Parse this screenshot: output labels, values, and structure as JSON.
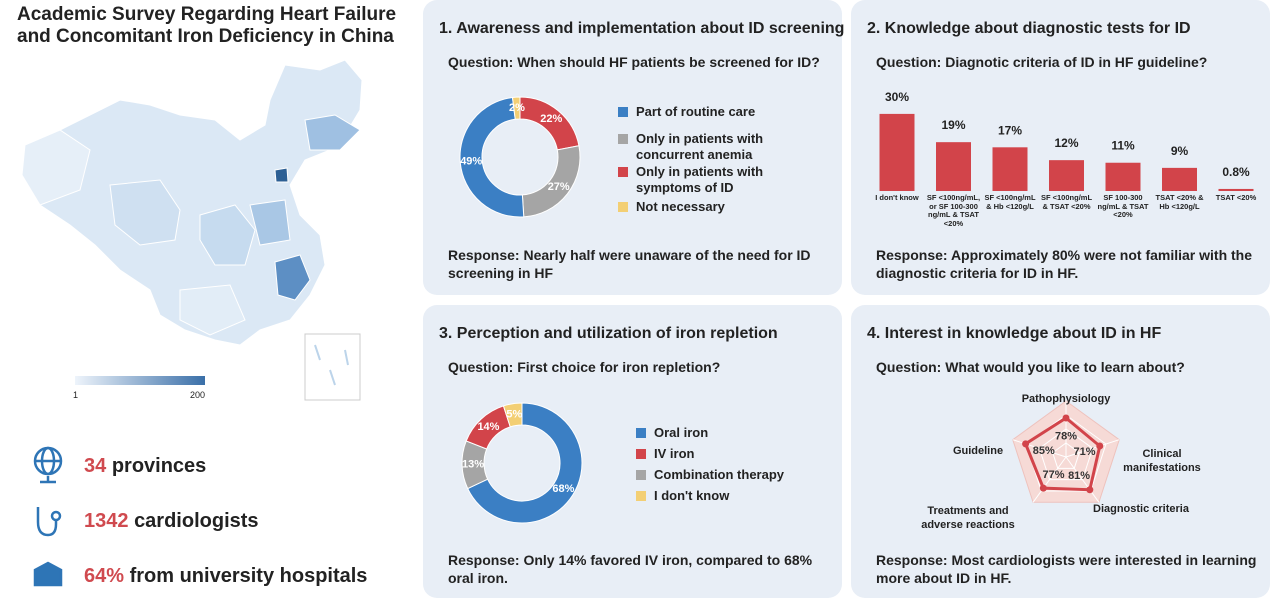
{
  "title": "Academic Survey Regarding Heart Failure and Concomitant Iron Deficiency in China",
  "map_legend": {
    "ticks": [
      1,
      200
    ]
  },
  "stats": [
    {
      "number": "34",
      "text": "provinces"
    },
    {
      "number": "1342",
      "text": "cardiologists"
    },
    {
      "number": "64%",
      "text": "from university hospitals"
    }
  ],
  "panels": [
    {
      "heading": "1. Awareness and implementation about ID screening",
      "question": "Question: When should HF patients be screened for ID?",
      "response": "Response: Nearly half were unaware of the need for ID screening in HF"
    },
    {
      "heading": "2. Knowledge about diagnostic tests for ID",
      "question": "Question: Diagnotic criteria of ID in HF guideline?",
      "response": "Response: Approximately 80% were not familiar with the diagnostic criteria for ID in HF."
    },
    {
      "heading": "3. Perception and utilization of iron repletion",
      "question": "Question: First choice for iron repletion?",
      "response": "Response: Only 14% favored IV iron, compared to 68% oral iron."
    },
    {
      "heading": "4. Interest in knowledge about ID in HF",
      "question": "Question: What would you like to learn about?",
      "response": "Response: Most cardiologists were interested in learning more about ID in HF."
    }
  ],
  "chart_data": [
    {
      "type": "pie",
      "categories": [
        "Part of routine care",
        "Only in patients with concurrent anemia",
        "Only in patients with symptoms of ID",
        "Not necessary"
      ],
      "values": [
        49,
        27,
        22,
        2
      ],
      "value_labels": [
        "49%",
        "27%",
        "22%",
        "2%"
      ],
      "colors": [
        "#3b7fc4",
        "#a5a5a5",
        "#d2444a",
        "#f3cf74"
      ]
    },
    {
      "type": "bar",
      "categories": [
        "I don't know",
        "SF <100ng/mL, or SF 100-300 ng/mL & TSAT <20%",
        "SF <100ng/mL & Hb <120g/L",
        "SF <100ng/mL & TSAT <20%",
        "SF 100-300 ng/mL & TSAT <20%",
        "TSAT <20% & Hb <120g/L",
        "TSAT <20%"
      ],
      "values": [
        30,
        19,
        17,
        12,
        11,
        9,
        0.8
      ],
      "value_labels": [
        "30%",
        "19%",
        "17%",
        "12%",
        "11%",
        "9%",
        "0.8%"
      ],
      "color": "#d2444a"
    },
    {
      "type": "pie",
      "categories": [
        "Oral iron",
        "IV iron",
        "Combination therapy",
        "I don't know"
      ],
      "values": [
        68,
        14,
        13,
        5
      ],
      "value_labels": [
        "68%",
        "14%",
        "13%",
        "5%"
      ],
      "colors": [
        "#3b7fc4",
        "#d2444a",
        "#a5a5a5",
        "#f3cf74"
      ]
    },
    {
      "type": "radar",
      "categories": [
        "Pathophysiology",
        "Clinical manifestations",
        "Diagnostic criteria",
        "Treatments and adverse reactions",
        "Guideline"
      ],
      "values": [
        78,
        71,
        81,
        77,
        85
      ],
      "value_labels": [
        "78%",
        "71%",
        "81%",
        "77%",
        "85%"
      ],
      "color": "#d2444a"
    }
  ]
}
